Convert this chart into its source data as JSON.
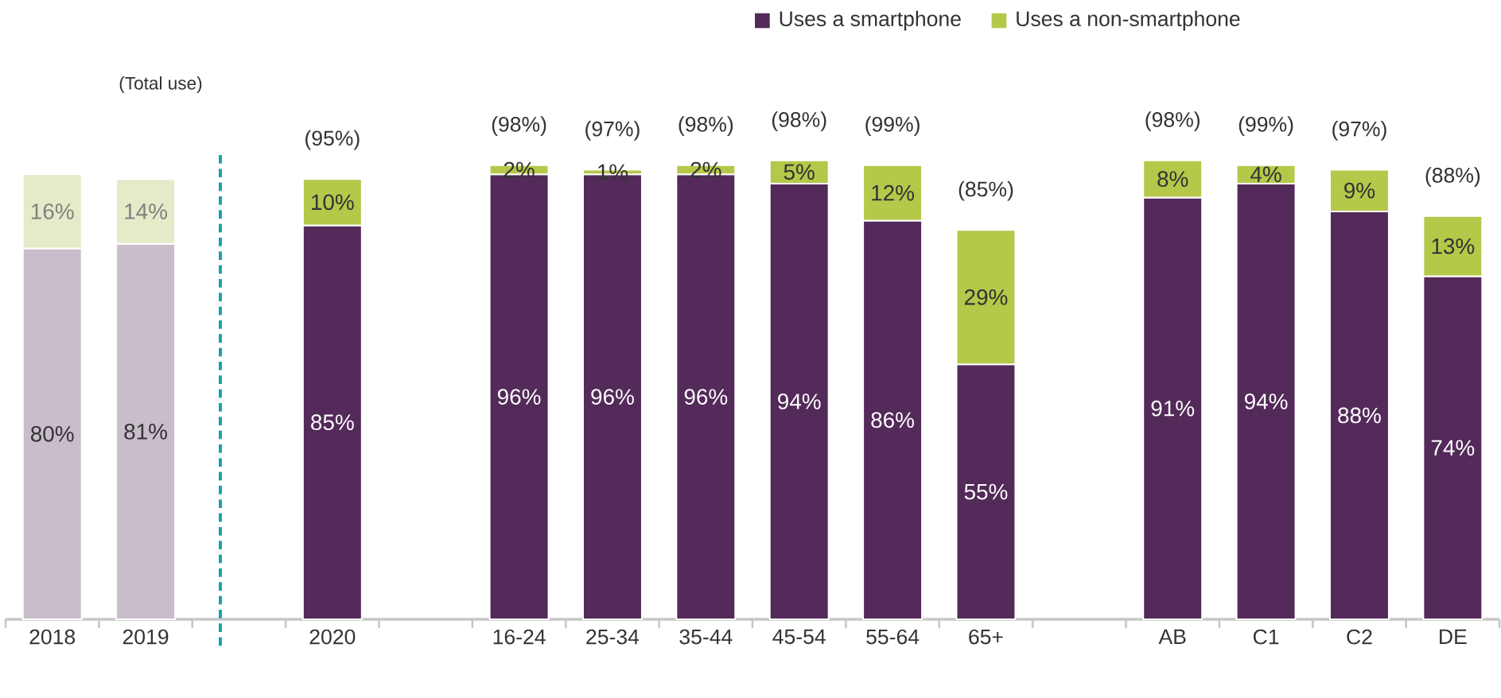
{
  "chart_data": {
    "type": "bar",
    "stacked": true,
    "categories": [
      "2018",
      "2019",
      null,
      "2020",
      null,
      "16-24",
      "25-34",
      "35-44",
      "45-54",
      "55-64",
      "65+",
      null,
      "AB",
      "C1",
      "C2",
      "DE"
    ],
    "series": [
      {
        "name": "Uses a smartphone",
        "color": "#532a59",
        "value_labels": [
          "80%",
          "81%",
          null,
          "85%",
          null,
          "96%",
          "96%",
          "96%",
          "94%",
          "86%",
          "55%",
          null,
          "91%",
          "94%",
          "88%",
          "74%"
        ],
        "colors": [
          "#c9bccb",
          "#c9bccb",
          null,
          "#532a59",
          null,
          "#532a59",
          "#532a59",
          "#532a59",
          "#532a59",
          "#532a59",
          "#532a59",
          null,
          "#532a59",
          "#532a59",
          "#532a59",
          "#532a59"
        ],
        "values": [
          80,
          81,
          null,
          85,
          null,
          96,
          96,
          96,
          94,
          86,
          55,
          null,
          91,
          94,
          88,
          74
        ]
      },
      {
        "name": "Uses a non-smartphone",
        "color": "#b5c84a",
        "value_labels": [
          "16%",
          "14%",
          null,
          "10%",
          null,
          "2%",
          "1%",
          "2%",
          "5%",
          "12%",
          "29%",
          null,
          "8%",
          "4%",
          "9%",
          "13%"
        ],
        "colors": [
          "#e5ebc8",
          "#e5ebc8",
          null,
          "#b5c84a",
          null,
          "#b5c84a",
          "#b5c84a",
          "#b5c84a",
          "#b5c84a",
          "#b5c84a",
          "#b5c84a",
          null,
          "#b5c84a",
          "#b5c84a",
          "#b5c84a",
          "#b5c84a"
        ],
        "values": [
          16,
          14,
          null,
          10,
          null,
          2,
          1,
          2,
          5,
          12,
          29,
          null,
          8,
          4,
          9,
          13
        ]
      }
    ],
    "totals": [
      null,
      null,
      null,
      "(95%)",
      null,
      "(98%)",
      "(97%)",
      "(98%)",
      "(98%)",
      "(99%)",
      "(85%)",
      null,
      "(98%)",
      "(99%)",
      "(97%)",
      "(88%)"
    ],
    "annotations": [
      "(Total use)"
    ],
    "tick_labels": "x",
    "grid": false,
    "legend": "top right"
  }
}
